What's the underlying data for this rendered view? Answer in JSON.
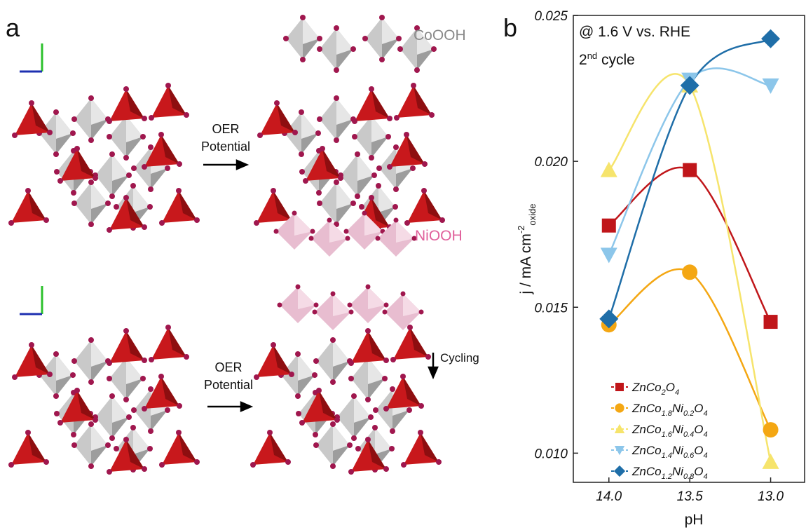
{
  "panel_a": {
    "label": "a",
    "top_label": "CoOOH",
    "bottom_label": "NiOOH",
    "arrow_top": [
      "OER",
      "Potential"
    ],
    "arrow_bottom": [
      "OER",
      "Potential"
    ],
    "cycling": "Cycling"
  },
  "chart_data": {
    "type": "line",
    "panel_label": "b",
    "annotation": "@ 1.6 V vs. RHE",
    "annotation2": {
      "text": "2",
      "sup": "nd",
      "rest": " cycle"
    },
    "xlabel": "pH",
    "ylabel": {
      "text": "j / mA cm",
      "sup": "-2",
      "sub": "oxide"
    },
    "x": [
      14.0,
      13.5,
      13.0
    ],
    "xlim": [
      14.22,
      12.79
    ],
    "xticks": [
      {
        "value": 14.0,
        "label": "14.0"
      },
      13.5,
      {
        "value": 13.0,
        "label": "13.0"
      }
    ],
    "ylim": [
      0.009,
      0.025
    ],
    "yticks": [
      {
        "value": 0.01,
        "label": "0.010"
      },
      0.015,
      {
        "value": 0.02,
        "label": "0.020"
      },
      0.025
    ],
    "series": [
      {
        "name": "ZnCo2O4",
        "color": "#c0161a",
        "marker": "square",
        "values": [
          0.0178,
          0.0197,
          0.0145
        ]
      },
      {
        "name": "ZnCo1.8Ni0.2O4",
        "color": "#f4a713",
        "marker": "circle",
        "values": [
          0.0144,
          0.0162,
          0.0108
        ]
      },
      {
        "name": "ZnCo1.6Ni0.4O4",
        "color": "#f6e46c",
        "marker": "triangle-up",
        "values": [
          0.0197,
          0.0226,
          0.0097
        ]
      },
      {
        "name": "ZnCo1.4Ni0.6O4",
        "color": "#8cc6ea",
        "marker": "triangle-down",
        "values": [
          0.0168,
          0.0228,
          0.0226
        ]
      },
      {
        "name": "ZnCo1.2Ni0.8O4",
        "color": "#1f6ea8",
        "marker": "diamond",
        "values": [
          0.0146,
          0.0226,
          0.0242
        ]
      }
    ]
  }
}
